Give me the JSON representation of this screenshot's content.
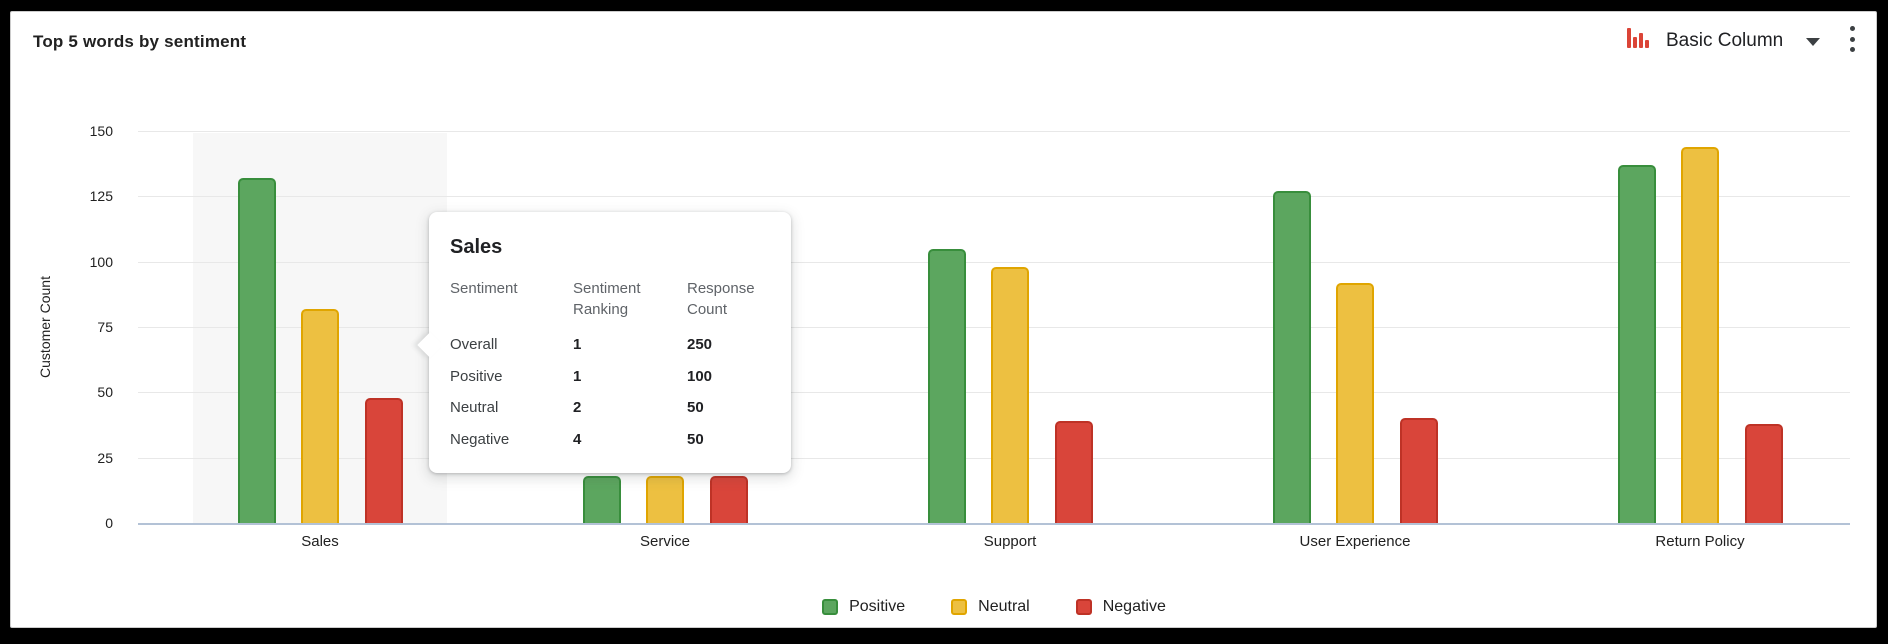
{
  "header": {
    "title": "Top 5 words by sentiment",
    "chart_type_label": "Basic Column"
  },
  "icons": {
    "chart_type": "column-chart-icon",
    "dropdown": "chevron-down-icon",
    "menu": "kebab-menu-icon"
  },
  "colors": {
    "accent_icon_red": "#DB4437",
    "grid_line": "#e8e8e8",
    "axis_baseline": "#b3c2d6",
    "hover_band": "#f7f7f7",
    "text_dark": "#212121"
  },
  "chart_data": {
    "type": "bar",
    "title": "Top 5 words by sentiment",
    "xlabel": "",
    "ylabel": "Customer Count",
    "ylim": [
      0,
      150
    ],
    "yticks": [
      0,
      25,
      50,
      75,
      100,
      125,
      150
    ],
    "grid": true,
    "legend_position": "bottom",
    "highlighted_category": "Sales",
    "categories": [
      "Sales",
      "Service",
      "Support",
      "User Experience",
      "Return Policy"
    ],
    "series": [
      {
        "name": "Positive",
        "color": "#5CA65F",
        "stroke": "#388E3C",
        "values": [
          132,
          18,
          105,
          127,
          137
        ]
      },
      {
        "name": "Neutral",
        "color": "#EDC041",
        "stroke": "#E0A500",
        "values": [
          82,
          18,
          98,
          92,
          144
        ]
      },
      {
        "name": "Negative",
        "color": "#D9453A",
        "stroke": "#BE3226",
        "values": [
          48,
          18,
          39,
          40,
          38
        ]
      }
    ]
  },
  "tooltip": {
    "title": "Sales",
    "columns": [
      "Sentiment",
      "Sentiment Ranking",
      "Response Count"
    ],
    "rows": [
      {
        "sentiment": "Overall",
        "ranking": "1",
        "count": "250"
      },
      {
        "sentiment": "Positive",
        "ranking": "1",
        "count": "100"
      },
      {
        "sentiment": "Neutral",
        "ranking": "2",
        "count": "50"
      },
      {
        "sentiment": "Negative",
        "ranking": "4",
        "count": "50"
      }
    ]
  },
  "legend": {
    "items": [
      {
        "label": "Positive"
      },
      {
        "label": "Neutral"
      },
      {
        "label": "Negative"
      }
    ]
  }
}
